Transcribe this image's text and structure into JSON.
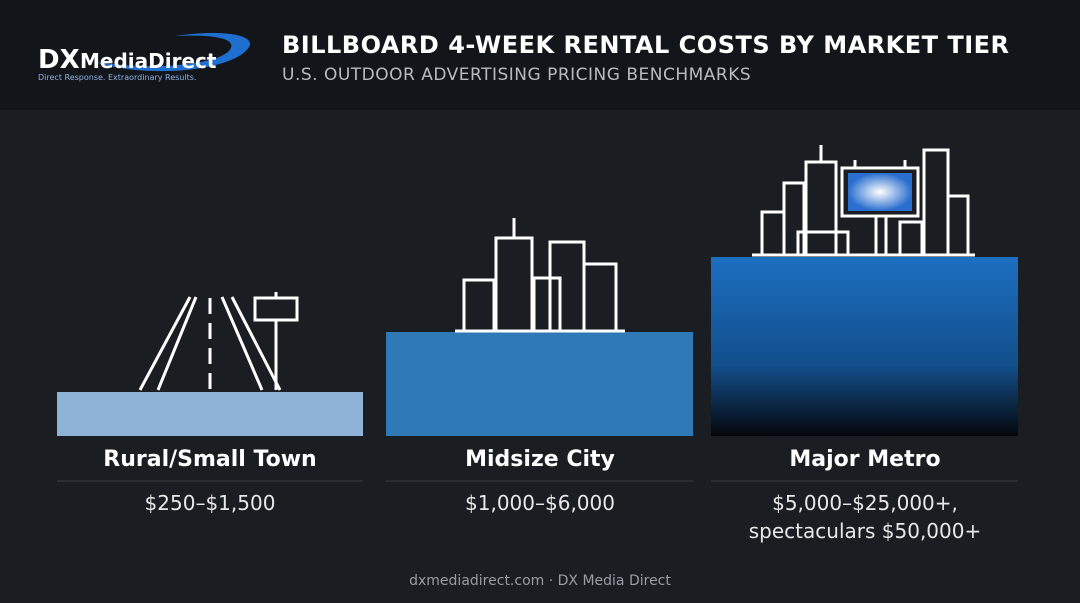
{
  "header": {
    "logo": {
      "brand": "DX",
      "name": "MediaDirect",
      "tagline": "Direct Response. Extraordinary Results."
    },
    "title": "BILLBOARD 4-WEEK RENTAL COSTS BY MARKET TIER",
    "subtitle": "U.S. OUTDOOR ADVERTISING PRICING BENCHMARKS"
  },
  "tiers": [
    {
      "name": "Rural/Small Town",
      "price": [
        "$250–$1,500"
      ]
    },
    {
      "name": "Midsize City",
      "price": [
        "$1,000–$6,000"
      ]
    },
    {
      "name": "Major Metro",
      "price": [
        "$5,000–$25,000+,",
        "spectaculars $50,000+"
      ]
    }
  ],
  "footer": "dxmediadirect.com · DX Media Direct"
}
